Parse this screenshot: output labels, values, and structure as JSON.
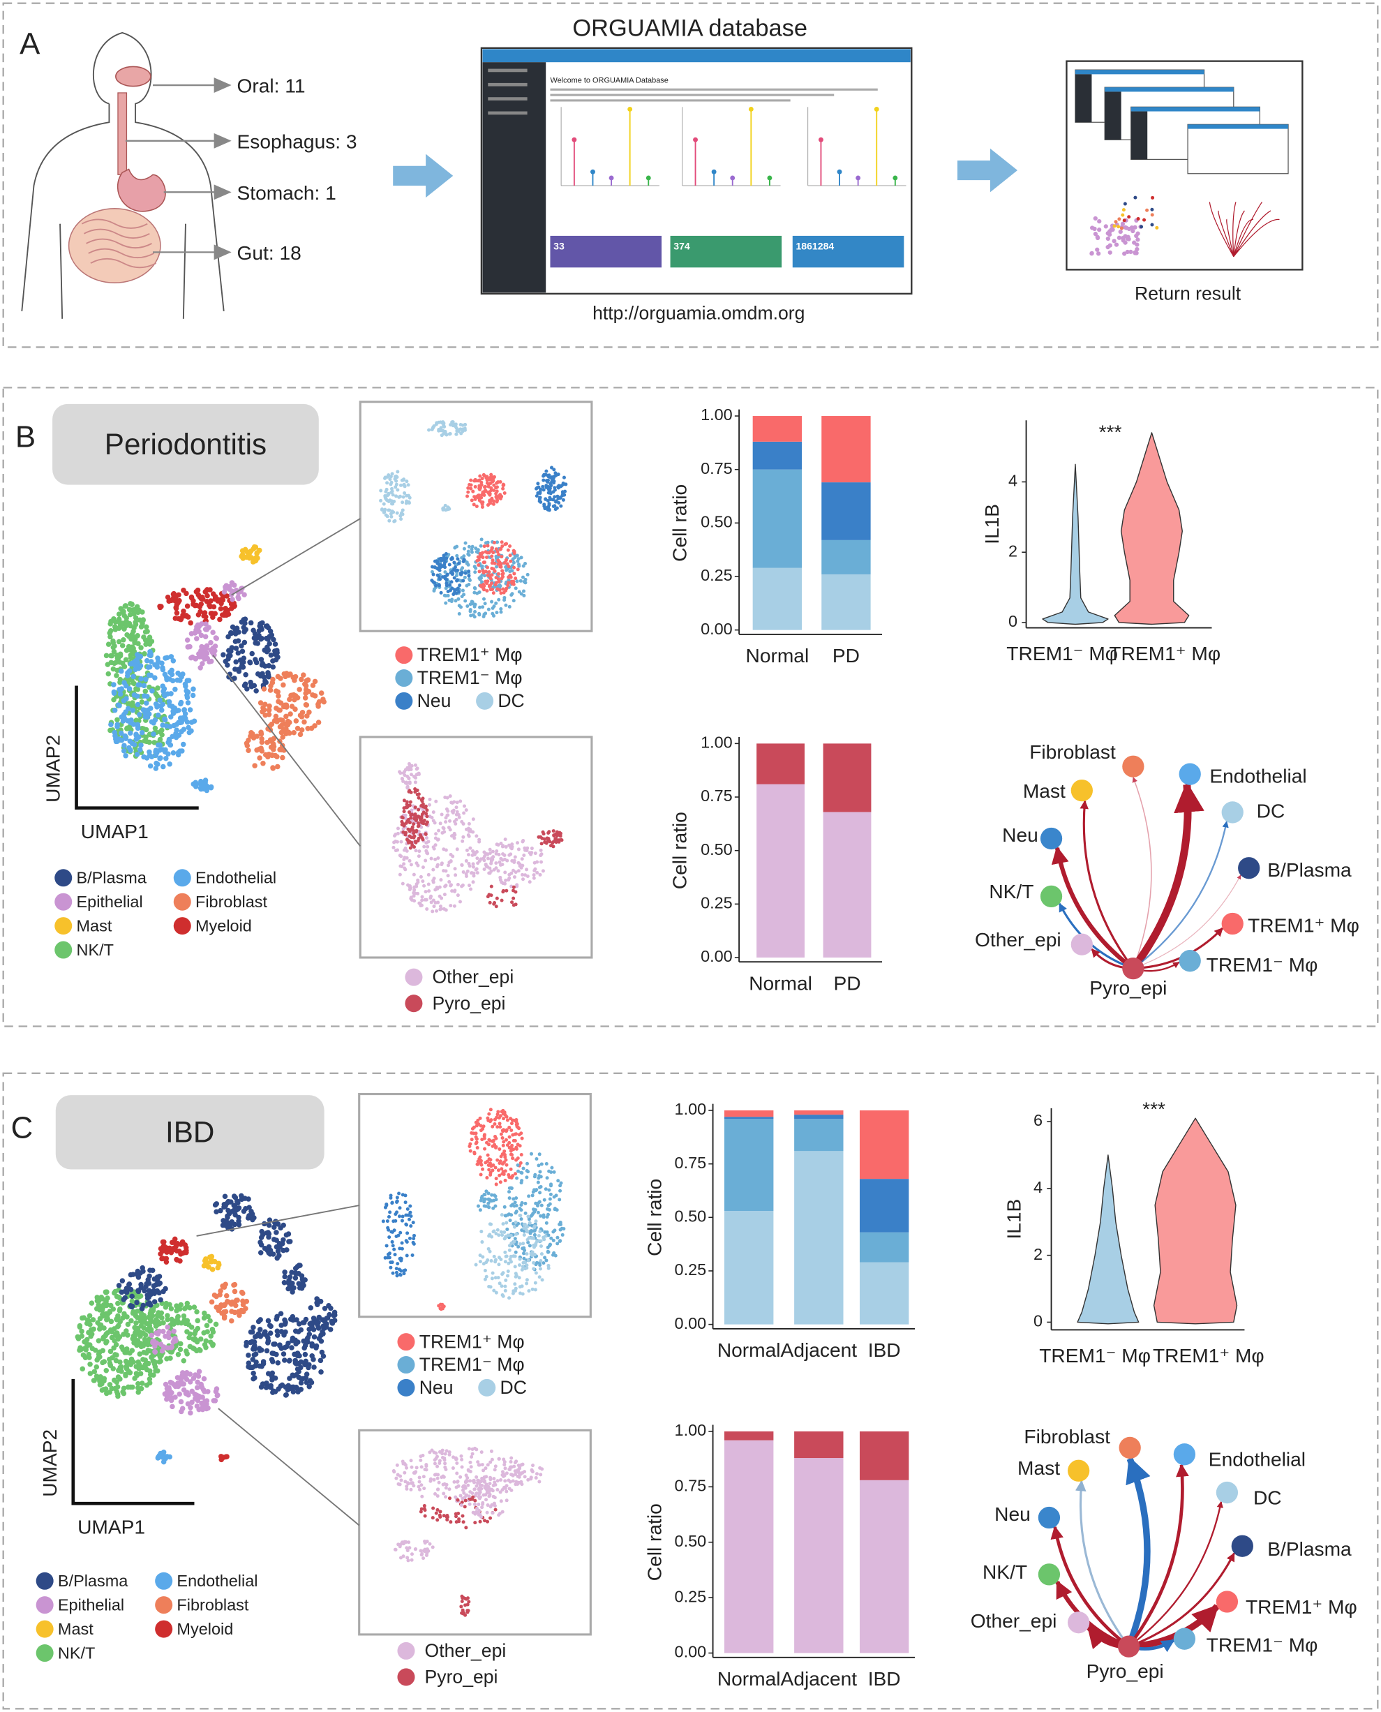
{
  "panel_a": {
    "label": "A",
    "organs": [
      "Oral: 11",
      "Esophagus: 3",
      "Stomach: 1",
      "Gut: 18"
    ],
    "title": "ORGUAMIA database",
    "screenshot": {
      "heading": "Welcome to ORGUAMIA Database",
      "stats": [
        "33",
        "374",
        "1861284"
      ]
    },
    "url": "http://orguamia.omdm.org",
    "result": "Return result"
  },
  "panel_b": {
    "label": "B",
    "disease": "Periodontitis",
    "umap": {
      "xlabel": "UMAP1",
      "ylabel": "UMAP2",
      "legend": [
        {
          "name": "B/Plasma",
          "color": "#2e4a87"
        },
        {
          "name": "Endothelial",
          "color": "#5aa9ea"
        },
        {
          "name": "Epithelial",
          "color": "#c994d2"
        },
        {
          "name": "Fibroblast",
          "color": "#ee7f5a"
        },
        {
          "name": "Mast",
          "color": "#f7c12b"
        },
        {
          "name": "Myeloid",
          "color": "#cf2e2e"
        },
        {
          "name": "NK/T",
          "color": "#6cc56c"
        }
      ]
    },
    "network": {
      "nodes": [
        {
          "name": "Fibroblast",
          "color": "#ee7f5a"
        },
        {
          "name": "Mast",
          "color": "#f7c12b"
        },
        {
          "name": "Endothelial",
          "color": "#5aa9ea"
        },
        {
          "name": "DC",
          "color": "#a8cfe5"
        },
        {
          "name": "Neu",
          "color": "#3a86cc"
        },
        {
          "name": "B/Plasma",
          "color": "#2e4a87"
        },
        {
          "name": "NK/T",
          "color": "#6cc56c"
        },
        {
          "name": "TREM1⁺ Mφ",
          "color": "#f96a6a"
        },
        {
          "name": "Other_epi",
          "color": "#dcb8dc"
        },
        {
          "name": "TREM1⁻ Mφ",
          "color": "#6aaed6"
        },
        {
          "name": "Pyro_epi",
          "color": "#c94a5a"
        }
      ]
    }
  },
  "panel_c": {
    "label": "C",
    "disease": "IBD",
    "umap": {
      "xlabel": "UMAP1",
      "ylabel": "UMAP2",
      "legend": [
        {
          "name": "B/Plasma",
          "color": "#2e4a87"
        },
        {
          "name": "Endothelial",
          "color": "#5aa9ea"
        },
        {
          "name": "Epithelial",
          "color": "#c994d2"
        },
        {
          "name": "Fibroblast",
          "color": "#ee7f5a"
        },
        {
          "name": "Mast",
          "color": "#f7c12b"
        },
        {
          "name": "Myeloid",
          "color": "#cf2e2e"
        },
        {
          "name": "NK/T",
          "color": "#6cc56c"
        }
      ]
    },
    "network": {
      "nodes": [
        {
          "name": "Fibroblast",
          "color": "#ee7f5a"
        },
        {
          "name": "Mast",
          "color": "#f7c12b"
        },
        {
          "name": "Endothelial",
          "color": "#5aa9ea"
        },
        {
          "name": "DC",
          "color": "#a8cfe5"
        },
        {
          "name": "Neu",
          "color": "#3a86cc"
        },
        {
          "name": "B/Plasma",
          "color": "#2e4a87"
        },
        {
          "name": "NK/T",
          "color": "#6cc56c"
        },
        {
          "name": "TREM1⁺ Mφ",
          "color": "#f96a6a"
        },
        {
          "name": "Other_epi",
          "color": "#dcb8dc"
        },
        {
          "name": "TREM1⁻ Mφ",
          "color": "#6aaed6"
        },
        {
          "name": "Pyro_epi",
          "color": "#c94a5a"
        }
      ]
    }
  },
  "chart_data": [
    {
      "type": "bar",
      "stacked": true,
      "ylabel": "Cell ratio",
      "categories": [
        "Normal",
        "PD"
      ],
      "series": [
        {
          "name": "DC",
          "color": "#a8cfe5",
          "values": [
            0.29,
            0.26
          ]
        },
        {
          "name": "TREM1⁻ Mφ",
          "color": "#6aaed6",
          "values": [
            0.46,
            0.16
          ]
        },
        {
          "name": "Neu",
          "color": "#3a80c8",
          "values": [
            0.13,
            0.27
          ]
        },
        {
          "name": "TREM1⁺ Mφ",
          "color": "#f96a6a",
          "values": [
            0.12,
            0.31
          ]
        }
      ],
      "ylim": [
        0,
        1
      ],
      "yticks": [
        {
          "value": 0,
          "label": "0.00"
        },
        0.25,
        {
          "value": 0.5,
          "label": "0.50"
        },
        0.75,
        {
          "value": 1,
          "label": "1.00"
        }
      ]
    },
    {
      "type": "bar",
      "stacked": true,
      "ylabel": "Cell ratio",
      "categories": [
        "Normal",
        "PD"
      ],
      "series": [
        {
          "name": "Other_epi",
          "color": "#dcb8dc",
          "values": [
            0.81,
            0.68
          ]
        },
        {
          "name": "Pyro_epi",
          "color": "#c94a5a",
          "values": [
            0.19,
            0.32
          ]
        }
      ],
      "ylim": [
        0,
        1
      ],
      "yticks": [
        {
          "value": 0,
          "label": "0.00"
        },
        0.25,
        {
          "value": 0.5,
          "label": "0.50"
        },
        0.75,
        {
          "value": 1,
          "label": "1.00"
        }
      ]
    },
    {
      "type": "violin",
      "ylabel": "IL1B",
      "categories": [
        "TREM1⁻ Mφ",
        "TREM1⁺ Mφ"
      ],
      "colors": [
        "#a8cfe5",
        "#f99a9a"
      ],
      "annotation": "***",
      "ylim": [
        -0.15,
        5.75
      ],
      "yticks": [
        0,
        2,
        4
      ]
    },
    {
      "type": "bar",
      "stacked": true,
      "ylabel": "Cell ratio",
      "categories": [
        "Normal",
        "Adjacent",
        "IBD"
      ],
      "series": [
        {
          "name": "DC",
          "color": "#a8cfe5",
          "values": [
            0.53,
            0.81,
            0.29
          ]
        },
        {
          "name": "TREM1⁻ Mφ",
          "color": "#6aaed6",
          "values": [
            0.43,
            0.15,
            0.14
          ]
        },
        {
          "name": "Neu",
          "color": "#3a80c8",
          "values": [
            0.01,
            0.02,
            0.25
          ]
        },
        {
          "name": "TREM1⁺ Mφ",
          "color": "#f96a6a",
          "values": [
            0.03,
            0.02,
            0.32
          ]
        }
      ],
      "ylim": [
        0,
        1
      ],
      "yticks": [
        {
          "value": 0,
          "label": "0.00"
        },
        0.25,
        {
          "value": 0.5,
          "label": "0.50"
        },
        0.75,
        {
          "value": 1,
          "label": "1.00"
        }
      ]
    },
    {
      "type": "bar",
      "stacked": true,
      "ylabel": "Cell ratio",
      "categories": [
        "Normal",
        "Adjacent",
        "IBD"
      ],
      "series": [
        {
          "name": "Other_epi",
          "color": "#dcb8dc",
          "values": [
            0.96,
            0.88,
            0.78
          ]
        },
        {
          "name": "Pyro_epi",
          "color": "#c94a5a",
          "values": [
            0.04,
            0.12,
            0.22
          ]
        }
      ],
      "ylim": [
        0,
        1
      ],
      "yticks": [
        {
          "value": 0,
          "label": "0.00"
        },
        0.25,
        {
          "value": 0.5,
          "label": "0.50"
        },
        0.75,
        {
          "value": 1,
          "label": "1.00"
        }
      ]
    },
    {
      "type": "violin",
      "ylabel": "IL1B",
      "categories": [
        "TREM1⁻ Mφ",
        "TREM1⁺ Mφ"
      ],
      "colors": [
        "#a8cfe5",
        "#f99a9a"
      ],
      "annotation": "***",
      "ylim": [
        -0.23,
        6.4
      ],
      "yticks": [
        0,
        2,
        4,
        6
      ]
    }
  ]
}
